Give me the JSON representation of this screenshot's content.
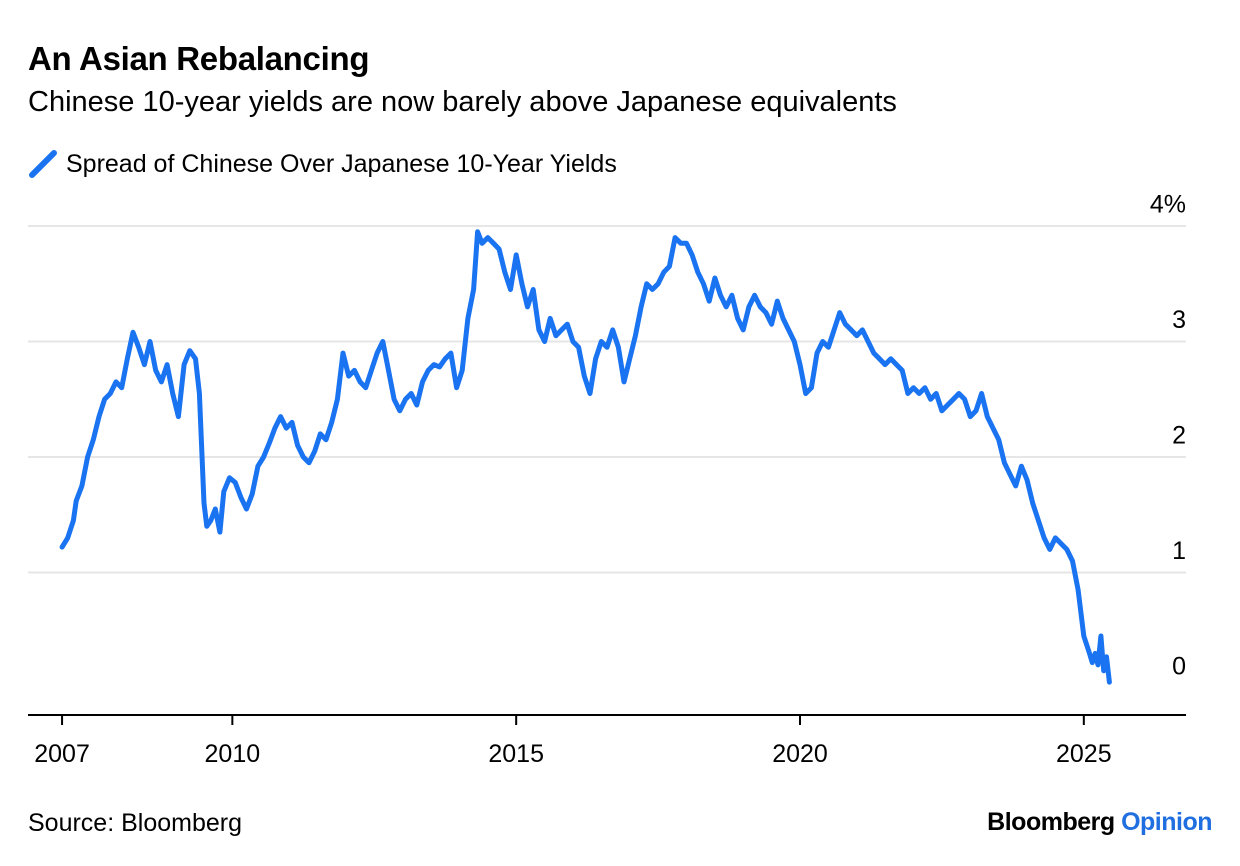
{
  "title": "An Asian Rebalancing",
  "subtitle": "Chinese 10-year yields are now barely above Japanese equivalents",
  "source": "Source: Bloomberg",
  "logo": {
    "brand": "Bloomberg",
    "section": "Opinion"
  },
  "colors": {
    "series": "#1a73f0",
    "grid": "#e6e6e6",
    "axis": "#000000",
    "logo_accent": "#1f6fe0"
  },
  "chart_data": {
    "type": "line",
    "title": "An Asian Rebalancing",
    "subtitle": "Chinese 10-year yields are now barely above Japanese equivalents",
    "ylabel": "",
    "xlabel": "",
    "xlim": [
      2006.4,
      2026.8
    ],
    "ylim": [
      -0.25,
      4.0
    ],
    "y_unit": "%",
    "y_ticks": [
      {
        "value": 0,
        "label": "0"
      },
      {
        "value": 1,
        "label": "1"
      },
      {
        "value": 2,
        "label": "2"
      },
      {
        "value": 3,
        "label": "3"
      },
      {
        "value": 4,
        "label": "4%"
      }
    ],
    "x_ticks": [
      {
        "value": 2007,
        "label": "2007"
      },
      {
        "value": 2010,
        "label": "2010"
      },
      {
        "value": 2015,
        "label": "2015"
      },
      {
        "value": 2020,
        "label": "2020"
      },
      {
        "value": 2025,
        "label": "2025"
      }
    ],
    "grid": true,
    "legend_position": "top-left",
    "series": [
      {
        "name": "Spread of Chinese Over Japanese 10-Year Yields",
        "points": [
          [
            2007.0,
            1.22
          ],
          [
            2007.1,
            1.3
          ],
          [
            2007.2,
            1.45
          ],
          [
            2007.25,
            1.62
          ],
          [
            2007.35,
            1.75
          ],
          [
            2007.45,
            2.0
          ],
          [
            2007.55,
            2.15
          ],
          [
            2007.65,
            2.35
          ],
          [
            2007.75,
            2.5
          ],
          [
            2007.85,
            2.55
          ],
          [
            2007.95,
            2.65
          ],
          [
            2008.05,
            2.6
          ],
          [
            2008.15,
            2.85
          ],
          [
            2008.25,
            3.08
          ],
          [
            2008.35,
            2.95
          ],
          [
            2008.45,
            2.8
          ],
          [
            2008.55,
            3.0
          ],
          [
            2008.65,
            2.75
          ],
          [
            2008.75,
            2.65
          ],
          [
            2008.85,
            2.8
          ],
          [
            2008.95,
            2.55
          ],
          [
            2009.05,
            2.35
          ],
          [
            2009.15,
            2.8
          ],
          [
            2009.25,
            2.92
          ],
          [
            2009.35,
            2.85
          ],
          [
            2009.42,
            2.55
          ],
          [
            2009.5,
            1.6
          ],
          [
            2009.55,
            1.4
          ],
          [
            2009.62,
            1.45
          ],
          [
            2009.7,
            1.55
          ],
          [
            2009.78,
            1.35
          ],
          [
            2009.85,
            1.7
          ],
          [
            2009.95,
            1.82
          ],
          [
            2010.05,
            1.78
          ],
          [
            2010.15,
            1.65
          ],
          [
            2010.25,
            1.55
          ],
          [
            2010.35,
            1.68
          ],
          [
            2010.45,
            1.92
          ],
          [
            2010.55,
            2.0
          ],
          [
            2010.65,
            2.12
          ],
          [
            2010.75,
            2.25
          ],
          [
            2010.85,
            2.35
          ],
          [
            2010.95,
            2.25
          ],
          [
            2011.05,
            2.3
          ],
          [
            2011.15,
            2.1
          ],
          [
            2011.25,
            2.0
          ],
          [
            2011.35,
            1.95
          ],
          [
            2011.45,
            2.05
          ],
          [
            2011.55,
            2.2
          ],
          [
            2011.65,
            2.15
          ],
          [
            2011.75,
            2.3
          ],
          [
            2011.85,
            2.5
          ],
          [
            2011.95,
            2.9
          ],
          [
            2012.05,
            2.7
          ],
          [
            2012.15,
            2.75
          ],
          [
            2012.25,
            2.65
          ],
          [
            2012.35,
            2.6
          ],
          [
            2012.45,
            2.75
          ],
          [
            2012.55,
            2.9
          ],
          [
            2012.65,
            3.0
          ],
          [
            2012.75,
            2.75
          ],
          [
            2012.85,
            2.5
          ],
          [
            2012.95,
            2.4
          ],
          [
            2013.05,
            2.5
          ],
          [
            2013.15,
            2.55
          ],
          [
            2013.25,
            2.45
          ],
          [
            2013.35,
            2.65
          ],
          [
            2013.45,
            2.75
          ],
          [
            2013.55,
            2.8
          ],
          [
            2013.65,
            2.78
          ],
          [
            2013.75,
            2.85
          ],
          [
            2013.85,
            2.9
          ],
          [
            2013.95,
            2.6
          ],
          [
            2014.05,
            2.75
          ],
          [
            2014.15,
            3.2
          ],
          [
            2014.25,
            3.45
          ],
          [
            2014.32,
            3.95
          ],
          [
            2014.4,
            3.85
          ],
          [
            2014.5,
            3.9
          ],
          [
            2014.6,
            3.85
          ],
          [
            2014.7,
            3.8
          ],
          [
            2014.8,
            3.6
          ],
          [
            2014.9,
            3.45
          ],
          [
            2015.0,
            3.75
          ],
          [
            2015.1,
            3.5
          ],
          [
            2015.2,
            3.3
          ],
          [
            2015.3,
            3.45
          ],
          [
            2015.4,
            3.1
          ],
          [
            2015.5,
            3.0
          ],
          [
            2015.6,
            3.2
          ],
          [
            2015.7,
            3.05
          ],
          [
            2015.8,
            3.1
          ],
          [
            2015.9,
            3.15
          ],
          [
            2016.0,
            3.0
          ],
          [
            2016.1,
            2.95
          ],
          [
            2016.2,
            2.7
          ],
          [
            2016.3,
            2.55
          ],
          [
            2016.4,
            2.85
          ],
          [
            2016.5,
            3.0
          ],
          [
            2016.6,
            2.95
          ],
          [
            2016.7,
            3.1
          ],
          [
            2016.8,
            2.95
          ],
          [
            2016.9,
            2.65
          ],
          [
            2017.0,
            2.85
          ],
          [
            2017.1,
            3.05
          ],
          [
            2017.2,
            3.3
          ],
          [
            2017.3,
            3.5
          ],
          [
            2017.4,
            3.45
          ],
          [
            2017.5,
            3.5
          ],
          [
            2017.6,
            3.6
          ],
          [
            2017.7,
            3.65
          ],
          [
            2017.8,
            3.9
          ],
          [
            2017.9,
            3.85
          ],
          [
            2018.0,
            3.85
          ],
          [
            2018.1,
            3.75
          ],
          [
            2018.2,
            3.6
          ],
          [
            2018.3,
            3.5
          ],
          [
            2018.4,
            3.35
          ],
          [
            2018.5,
            3.55
          ],
          [
            2018.6,
            3.4
          ],
          [
            2018.7,
            3.3
          ],
          [
            2018.8,
            3.4
          ],
          [
            2018.9,
            3.2
          ],
          [
            2019.0,
            3.1
          ],
          [
            2019.1,
            3.3
          ],
          [
            2019.2,
            3.4
          ],
          [
            2019.3,
            3.3
          ],
          [
            2019.4,
            3.25
          ],
          [
            2019.5,
            3.15
          ],
          [
            2019.6,
            3.35
          ],
          [
            2019.7,
            3.2
          ],
          [
            2019.8,
            3.1
          ],
          [
            2019.9,
            3.0
          ],
          [
            2020.0,
            2.8
          ],
          [
            2020.1,
            2.55
          ],
          [
            2020.2,
            2.6
          ],
          [
            2020.3,
            2.9
          ],
          [
            2020.4,
            3.0
          ],
          [
            2020.5,
            2.95
          ],
          [
            2020.6,
            3.1
          ],
          [
            2020.7,
            3.25
          ],
          [
            2020.8,
            3.15
          ],
          [
            2020.9,
            3.1
          ],
          [
            2021.0,
            3.05
          ],
          [
            2021.1,
            3.1
          ],
          [
            2021.2,
            3.0
          ],
          [
            2021.3,
            2.9
          ],
          [
            2021.4,
            2.85
          ],
          [
            2021.5,
            2.8
          ],
          [
            2021.6,
            2.85
          ],
          [
            2021.7,
            2.8
          ],
          [
            2021.8,
            2.75
          ],
          [
            2021.9,
            2.55
          ],
          [
            2022.0,
            2.6
          ],
          [
            2022.1,
            2.55
          ],
          [
            2022.2,
            2.6
          ],
          [
            2022.3,
            2.5
          ],
          [
            2022.4,
            2.55
          ],
          [
            2022.5,
            2.4
          ],
          [
            2022.6,
            2.45
          ],
          [
            2022.7,
            2.5
          ],
          [
            2022.8,
            2.55
          ],
          [
            2022.9,
            2.5
          ],
          [
            2023.0,
            2.35
          ],
          [
            2023.1,
            2.4
          ],
          [
            2023.2,
            2.55
          ],
          [
            2023.3,
            2.35
          ],
          [
            2023.4,
            2.25
          ],
          [
            2023.5,
            2.15
          ],
          [
            2023.6,
            1.95
          ],
          [
            2023.7,
            1.85
          ],
          [
            2023.8,
            1.75
          ],
          [
            2023.9,
            1.92
          ],
          [
            2024.0,
            1.8
          ],
          [
            2024.1,
            1.6
          ],
          [
            2024.2,
            1.45
          ],
          [
            2024.3,
            1.3
          ],
          [
            2024.4,
            1.2
          ],
          [
            2024.5,
            1.3
          ],
          [
            2024.6,
            1.25
          ],
          [
            2024.7,
            1.2
          ],
          [
            2024.8,
            1.1
          ],
          [
            2024.9,
            0.85
          ],
          [
            2025.0,
            0.45
          ],
          [
            2025.1,
            0.3
          ],
          [
            2025.15,
            0.22
          ],
          [
            2025.2,
            0.3
          ],
          [
            2025.25,
            0.2
          ],
          [
            2025.3,
            0.45
          ],
          [
            2025.35,
            0.15
          ],
          [
            2025.4,
            0.27
          ],
          [
            2025.45,
            0.05
          ]
        ]
      }
    ]
  }
}
